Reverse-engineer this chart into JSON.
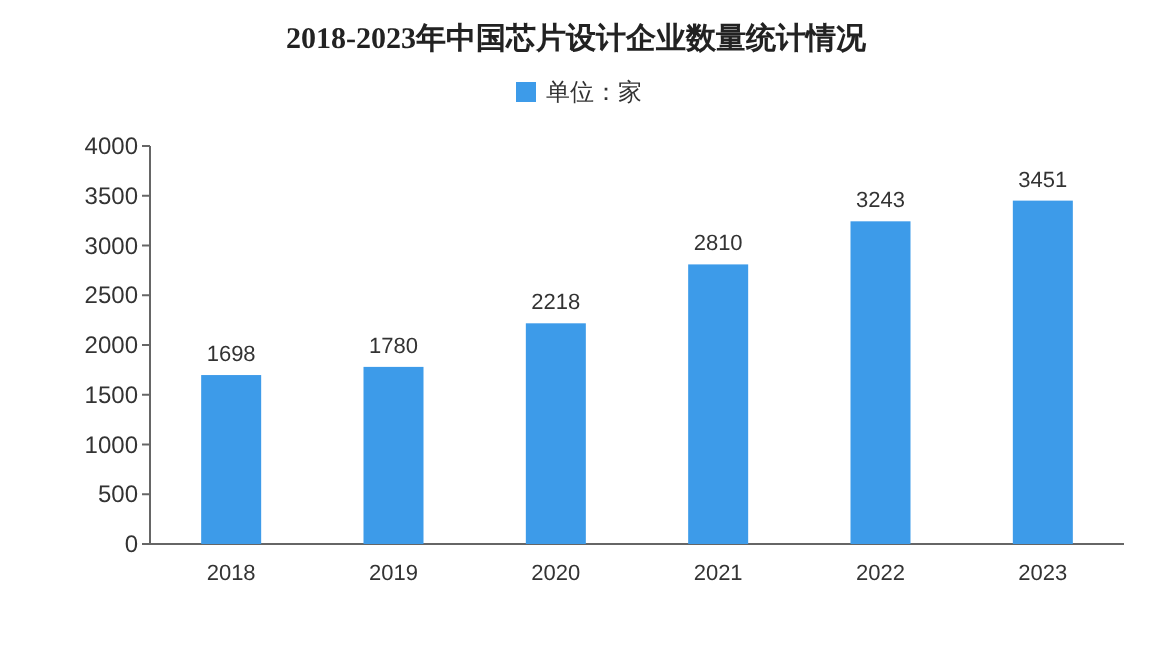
{
  "chart_data": {
    "type": "bar",
    "title": "2018-2023年中国芯片设计企业数量统计情况",
    "categories": [
      "2018",
      "2019",
      "2020",
      "2021",
      "2022",
      "2023"
    ],
    "series": [
      {
        "name": "单位：家",
        "color": "#3d9be9",
        "values": [
          1698,
          1780,
          2218,
          2810,
          3243,
          3451
        ]
      }
    ],
    "ylim": [
      0,
      4000
    ],
    "yticks": [
      0,
      500,
      1000,
      1500,
      2000,
      2500,
      3000,
      3500,
      4000
    ],
    "data_labels": true,
    "legend": "top",
    "grid": false
  }
}
